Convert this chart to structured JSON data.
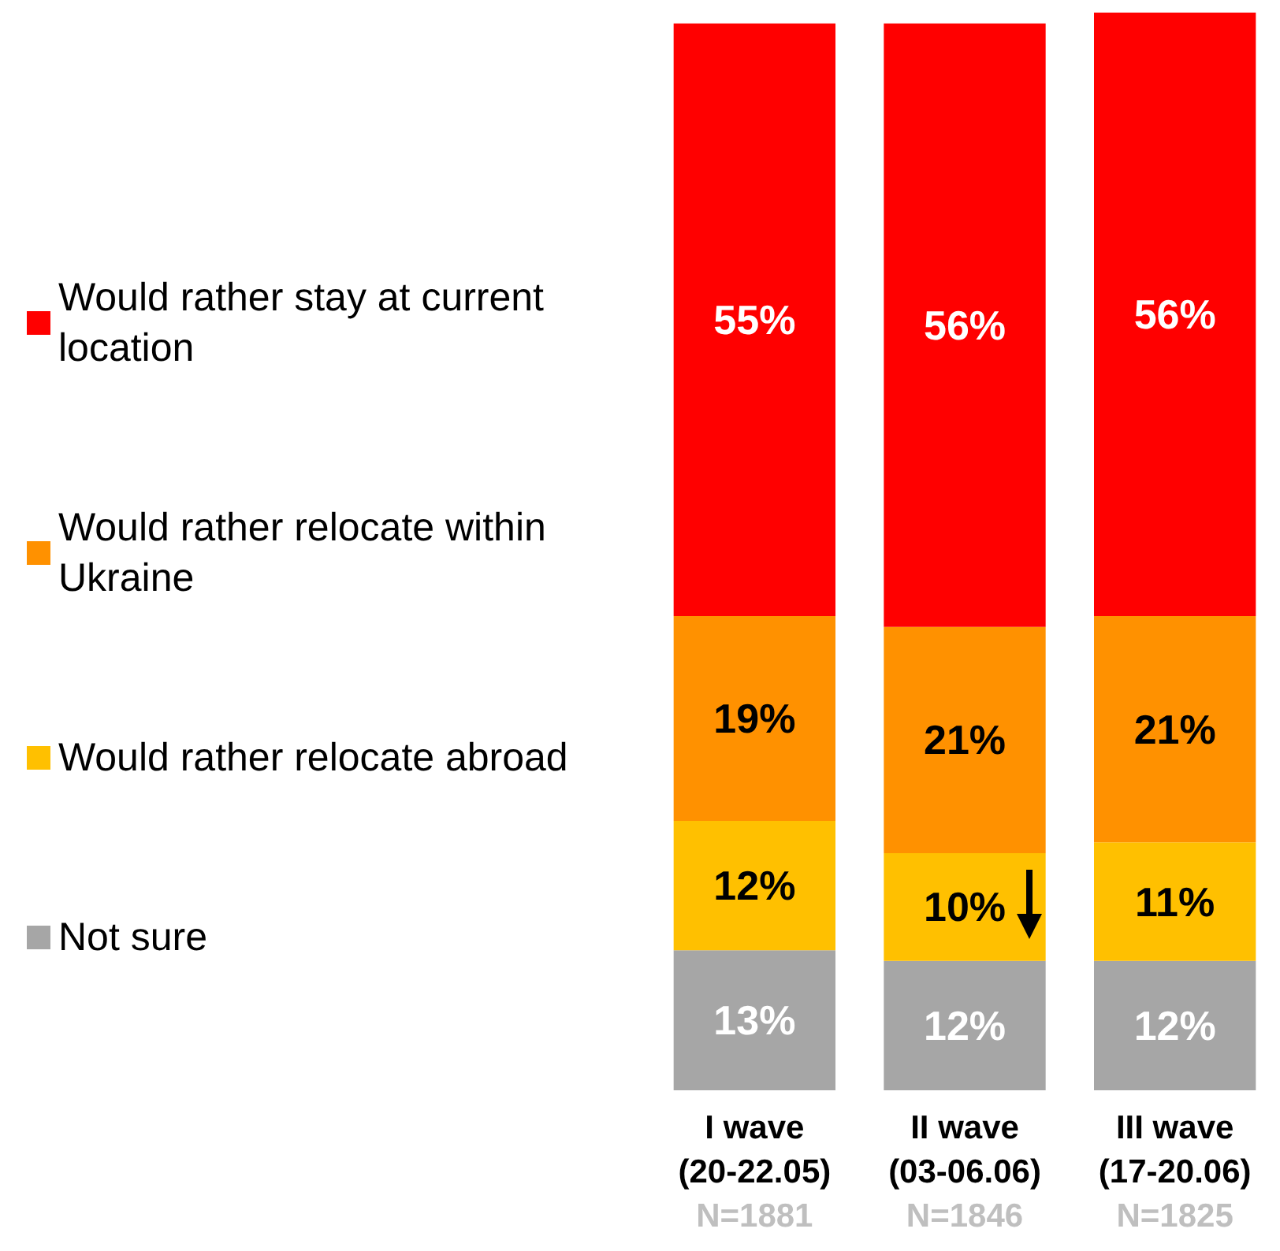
{
  "chart_data": {
    "type": "bar",
    "stacked": true,
    "categories": [
      "I wave\n(20-22.05)",
      "II wave\n(03-06.06)",
      "III wave\n(17-20.06)"
    ],
    "series": [
      {
        "name": "Not sure",
        "color": "#a6a6a6",
        "values": [
          13,
          12,
          12
        ],
        "value_labels": [
          "13%",
          "12%",
          "12%"
        ]
      },
      {
        "name": "Would rather relocate abroad",
        "color": "#ffc000",
        "values": [
          12,
          10,
          11
        ],
        "value_labels": [
          "12%",
          "10%",
          "11%"
        ]
      },
      {
        "name": "Would rather relocate within Ukraine",
        "color": "#ff9100",
        "values": [
          19,
          21,
          21
        ],
        "value_labels": [
          "19%",
          "21%",
          "21%"
        ]
      },
      {
        "name": "Would rather stay at current location",
        "color": "#ff0000",
        "values": [
          55,
          56,
          56
        ],
        "value_labels": [
          "55%",
          "56%",
          "56%"
        ]
      }
    ],
    "annotations": [
      "N=1881",
      "N=1846",
      "N=1825"
    ],
    "legend": "left"
  }
}
